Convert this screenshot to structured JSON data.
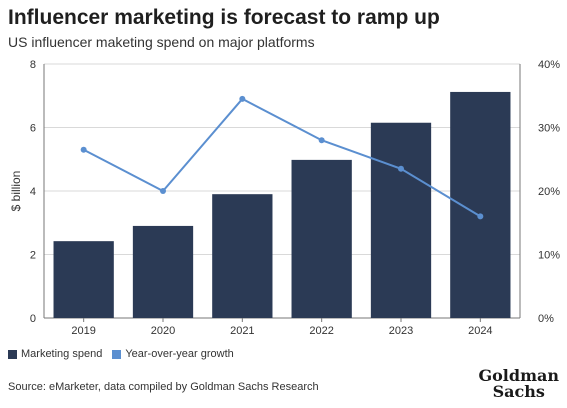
{
  "title": "Influencer marketing is forecast to ramp up",
  "subtitle": "US influencer maketing spend on major platforms",
  "colors": {
    "bar": "#2b3a55",
    "line": "#5b8fd0",
    "grid": "#d9d9d9",
    "axis": "#777777"
  },
  "legend": {
    "bar_label": "Marketing spend",
    "line_label": "Year-over-year growth"
  },
  "source": "Source: eMarketer, data compiled by Goldman Sachs Research",
  "logo": {
    "line1": "Goldman",
    "line2": "Sachs"
  },
  "chart_data": {
    "type": "bar",
    "categories": [
      "2019",
      "2020",
      "2021",
      "2022",
      "2023",
      "2024"
    ],
    "series": [
      {
        "name": "Marketing spend",
        "type": "bar",
        "axis": "left",
        "values": [
          2.42,
          2.9,
          3.9,
          4.98,
          6.15,
          7.12
        ]
      },
      {
        "name": "Year-over-year growth",
        "type": "line",
        "axis": "right",
        "values": [
          26.5,
          20,
          34.5,
          28,
          23.5,
          16
        ]
      }
    ],
    "ylabel": "$ billion",
    "ylim": [
      0,
      8
    ],
    "yticks": [
      "0",
      "2",
      "4",
      "6",
      "8"
    ],
    "y2lim": [
      0,
      40
    ],
    "y2ticks": [
      "0%",
      "10%",
      "20%",
      "30%",
      "40%"
    ],
    "grid": true,
    "legend_position": "bottom-left"
  }
}
